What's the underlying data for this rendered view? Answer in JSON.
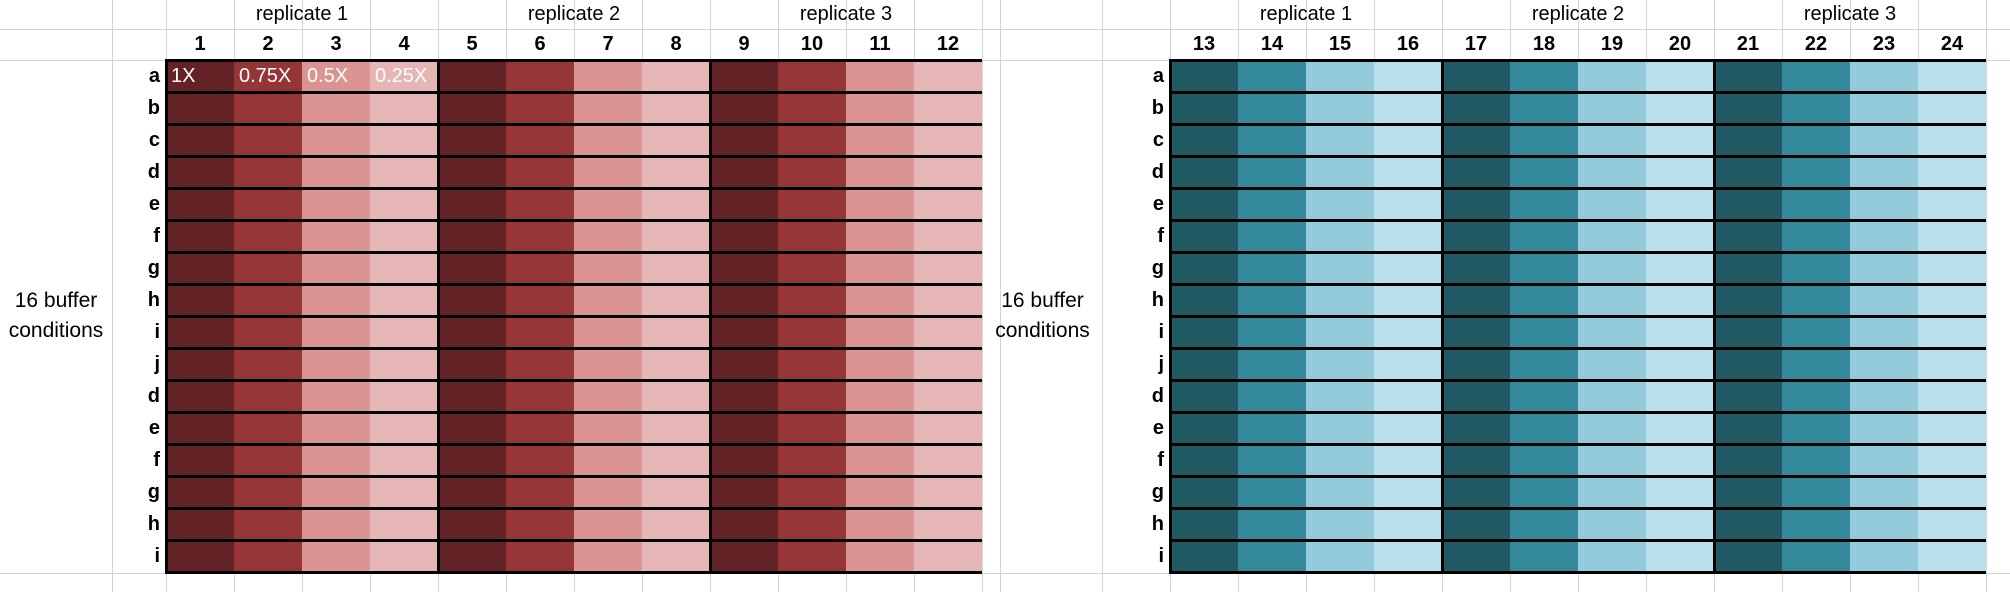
{
  "plates": [
    {
      "replicates": [
        "replicate 1",
        "replicate 2",
        "replicate 3"
      ],
      "columns": [
        "1",
        "2",
        "3",
        "4",
        "5",
        "6",
        "7",
        "8",
        "9",
        "10",
        "11",
        "12"
      ],
      "rows": [
        "a",
        "b",
        "c",
        "d",
        "e",
        "f",
        "g",
        "h",
        "i",
        "j",
        "d",
        "e",
        "f",
        "g",
        "h",
        "i"
      ],
      "side_label": [
        "16 buffer",
        "conditions"
      ],
      "shade_colors": [
        "#632226",
        "#963537",
        "#db9394",
        "#e6b5b6"
      ],
      "concentration_labels": [
        "1X",
        "0.75X",
        "0.5X",
        "0.25X"
      ]
    },
    {
      "replicates": [
        "replicate 1",
        "replicate 2",
        "replicate 3"
      ],
      "columns": [
        "13",
        "14",
        "15",
        "16",
        "17",
        "18",
        "19",
        "20",
        "21",
        "22",
        "23",
        "24"
      ],
      "rows": [
        "a",
        "b",
        "c",
        "d",
        "e",
        "f",
        "g",
        "h",
        "i",
        "j",
        "d",
        "e",
        "f",
        "g",
        "h",
        "i"
      ],
      "side_label": [
        "16 buffer",
        "conditions"
      ],
      "shade_colors": [
        "#225a64",
        "#338899",
        "#92cbdb",
        "#b9e0ea"
      ],
      "concentration_labels": []
    }
  ]
}
